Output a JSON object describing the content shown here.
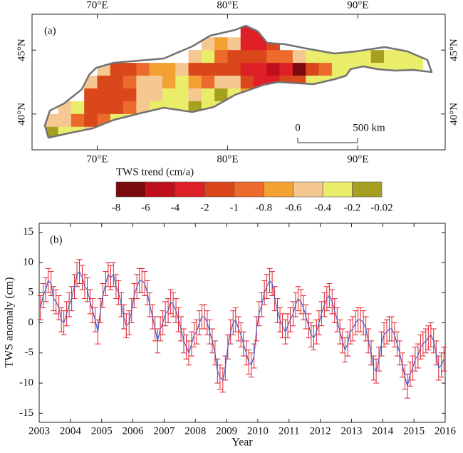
{
  "chart_data": [
    {
      "type": "heatmap",
      "panel_label": "(a)",
      "x": [
        66.5,
        67.5,
        68.5,
        69.5,
        70.5,
        71.5,
        72.5,
        73.5,
        74.5,
        75.5,
        76.5,
        77.5,
        78.5,
        79.5,
        80.5,
        81.5,
        82.5,
        83.5,
        84.5,
        85.5,
        86.5,
        87.5,
        88.5,
        89.5,
        90.5,
        91.5,
        92.5,
        93.5,
        94.5
      ],
      "y": [
        46.5,
        45.5,
        44.5,
        43.5,
        42.5,
        41.5,
        40.5,
        39.5,
        38.5
      ],
      "values": [
        [
          null,
          null,
          null,
          null,
          null,
          null,
          null,
          null,
          null,
          null,
          null,
          null,
          null,
          null,
          null,
          -3,
          -3,
          null,
          null,
          null,
          null,
          null,
          null,
          null,
          null,
          null,
          null,
          null,
          null
        ],
        [
          null,
          null,
          null,
          null,
          null,
          null,
          null,
          null,
          null,
          null,
          null,
          null,
          -0.5,
          -0.7,
          -0.5,
          -3,
          -3,
          -1.5,
          null,
          null,
          null,
          null,
          null,
          null,
          null,
          null,
          null,
          null,
          null
        ],
        [
          null,
          null,
          null,
          null,
          null,
          null,
          null,
          null,
          null,
          null,
          null,
          -0.5,
          -0.3,
          -0.9,
          -1.5,
          -1.5,
          -1.5,
          -0.9,
          -0.9,
          -0.5,
          -0.3,
          -0.3,
          -0.3,
          -0.3,
          -0.3,
          -0.1,
          -0.3,
          -0.3,
          -0.3
        ],
        [
          null,
          null,
          null,
          null,
          -0.5,
          -1.5,
          -1.5,
          -0.9,
          -0.7,
          -0.7,
          -0.5,
          -1.5,
          -1.5,
          -1.5,
          -1.5,
          -3,
          -3,
          -5,
          -3,
          -7,
          -1.5,
          -0.9,
          -0.3,
          -0.3,
          -0.3,
          -0.3,
          -0.3,
          -0.3,
          -0.3
        ],
        [
          null,
          null,
          null,
          -0.5,
          -1.5,
          -1.5,
          -0.9,
          -0.5,
          -0.5,
          -0.7,
          -0.3,
          -0.7,
          -0.9,
          -0.5,
          -0.5,
          -1.5,
          -3,
          -3,
          -1.5,
          -1.5,
          -0.3,
          -0.3,
          -0.3,
          null,
          null,
          null,
          null,
          null,
          null
        ],
        [
          null,
          null,
          null,
          -1.5,
          -1.5,
          -1.5,
          -1.5,
          -0.5,
          -0.5,
          -0.3,
          -0.3,
          -0.5,
          -0.3,
          -0.1,
          -0.3,
          -0.7,
          -0.3,
          -0.3,
          -0.3,
          -0.3,
          null,
          null,
          null,
          null,
          null,
          null,
          null,
          null,
          null
        ],
        [
          null,
          -0.5,
          -0.3,
          -1.5,
          -1.5,
          -1.5,
          -0.9,
          -0.5,
          -0.3,
          -0.3,
          -0.3,
          -0.1,
          -0.3,
          -0.3,
          -0.1,
          null,
          null,
          null,
          null,
          null,
          null,
          null,
          null,
          null,
          null,
          null,
          null,
          null,
          null
        ],
        [
          -0.5,
          -0.5,
          -0.9,
          -1.5,
          -0.9,
          -0.3,
          -0.3,
          null,
          null,
          null,
          null,
          null,
          null,
          null,
          null,
          null,
          null,
          null,
          null,
          null,
          null,
          null,
          null,
          null,
          null,
          null,
          null,
          null,
          null
        ],
        [
          -0.1,
          -0.3,
          -0.3,
          -0.5,
          null,
          null,
          null,
          null,
          null,
          null,
          null,
          null,
          null,
          null,
          null,
          null,
          null,
          null,
          null,
          null,
          null,
          null,
          null,
          null,
          null,
          null,
          null,
          null,
          null
        ]
      ],
      "xlim": [
        65,
        96.7
      ],
      "ylim": [
        37.2,
        47.8
      ],
      "xticks": [
        {
          "value": 70,
          "label": "70°E"
        },
        {
          "value": 80,
          "label": "80°E"
        },
        {
          "value": 90,
          "label": "90°E"
        }
      ],
      "yticks": [
        {
          "value": 40,
          "label": "40°N"
        },
        {
          "value": 45,
          "label": "45°N"
        }
      ],
      "colorbar": {
        "title": "TWS trend (cm/a)",
        "ticks": [
          -8,
          -6,
          -4,
          -2,
          -1,
          -0.8,
          -0.6,
          -0.4,
          -0.2,
          -0.02
        ],
        "colors": [
          "#7a0a0e",
          "#bf0f1b",
          "#df1f27",
          "#d9471b",
          "#ec6a2c",
          "#f3a132",
          "#f5c891",
          "#e9ed6a",
          "#a6a021"
        ]
      },
      "annotations": [
        "0",
        "500 km"
      ],
      "outline_color": "#727272"
    },
    {
      "type": "line",
      "panel_label": "(b)",
      "x_label": "Year",
      "y_label": "TWS anomaly (cm)",
      "x": [
        2003.04,
        2003.13,
        2003.21,
        2003.29,
        2003.38,
        2003.46,
        2003.54,
        2003.63,
        2003.71,
        2003.79,
        2003.88,
        2003.96,
        2004.04,
        2004.13,
        2004.21,
        2004.29,
        2004.38,
        2004.46,
        2004.54,
        2004.63,
        2004.71,
        2004.79,
        2004.88,
        2004.96,
        2005.04,
        2005.13,
        2005.21,
        2005.29,
        2005.38,
        2005.46,
        2005.54,
        2005.63,
        2005.71,
        2005.79,
        2005.88,
        2005.96,
        2006.04,
        2006.13,
        2006.21,
        2006.29,
        2006.38,
        2006.46,
        2006.54,
        2006.63,
        2006.71,
        2006.79,
        2006.88,
        2006.96,
        2007.04,
        2007.13,
        2007.21,
        2007.29,
        2007.38,
        2007.46,
        2007.54,
        2007.63,
        2007.71,
        2007.79,
        2007.88,
        2007.96,
        2008.04,
        2008.13,
        2008.21,
        2008.29,
        2008.38,
        2008.46,
        2008.54,
        2008.63,
        2008.71,
        2008.79,
        2008.88,
        2008.96,
        2009.04,
        2009.13,
        2009.21,
        2009.29,
        2009.38,
        2009.46,
        2009.54,
        2009.63,
        2009.71,
        2009.79,
        2009.88,
        2009.96,
        2010.04,
        2010.13,
        2010.21,
        2010.29,
        2010.38,
        2010.46,
        2010.54,
        2010.63,
        2010.71,
        2010.79,
        2010.88,
        2010.96,
        2011.04,
        2011.13,
        2011.21,
        2011.29,
        2011.38,
        2011.46,
        2011.54,
        2011.63,
        2011.71,
        2011.79,
        2011.88,
        2011.96,
        2012.04,
        2012.13,
        2012.21,
        2012.29,
        2012.38,
        2012.46,
        2012.54,
        2012.63,
        2012.71,
        2012.79,
        2012.88,
        2012.96,
        2013.04,
        2013.13,
        2013.21,
        2013.29,
        2013.38,
        2013.46,
        2013.54,
        2013.63,
        2013.71,
        2013.79,
        2013.88,
        2013.96,
        2014.04,
        2014.13,
        2014.21,
        2014.29,
        2014.38,
        2014.46,
        2014.54,
        2014.63,
        2014.71,
        2014.79,
        2014.88,
        2014.96,
        2015.04,
        2015.13,
        2015.21,
        2015.29,
        2015.38,
        2015.46,
        2015.54,
        2015.63,
        2015.71,
        2015.79,
        2015.88,
        2015.96
      ],
      "series": [
        {
          "color": "#4a5cc8",
          "error_color": "#e0202a",
          "error": 2,
          "values": [
            2.5,
            4.5,
            5.5,
            7.0,
            6.5,
            4.0,
            3.5,
            2.5,
            0.5,
            0.0,
            1.5,
            3.0,
            4.0,
            6.0,
            8.0,
            8.5,
            7.5,
            6.0,
            5.5,
            3.5,
            2.0,
            0.5,
            -1.5,
            2.0,
            4.5,
            6.5,
            8.0,
            7.5,
            8.0,
            6.0,
            5.0,
            3.0,
            1.0,
            -0.5,
            0.0,
            2.0,
            4.5,
            6.0,
            7.0,
            7.0,
            6.5,
            5.0,
            3.0,
            1.0,
            -1.0,
            -3.0,
            -1.0,
            0.0,
            1.5,
            2.0,
            3.5,
            3.0,
            2.0,
            0.5,
            -1.0,
            -3.0,
            -4.0,
            -5.0,
            -3.5,
            -2.0,
            -1.5,
            0.0,
            1.0,
            1.0,
            0.0,
            -1.5,
            -3.0,
            -5.0,
            -8.0,
            -9.0,
            -9.5,
            -7.5,
            -4.0,
            -1.5,
            0.0,
            0.5,
            -1.0,
            -2.0,
            -3.5,
            -5.0,
            -6.5,
            -7.0,
            -5.5,
            -1.0,
            1.5,
            3.0,
            5.0,
            6.0,
            7.0,
            6.5,
            4.0,
            2.0,
            0.5,
            -0.5,
            -1.5,
            -0.5,
            0.5,
            1.5,
            3.0,
            4.0,
            3.5,
            2.5,
            1.0,
            -0.5,
            -2.0,
            -2.5,
            -1.5,
            0.0,
            1.5,
            3.0,
            4.0,
            4.5,
            3.5,
            2.0,
            0.5,
            -1.5,
            -3.0,
            -4.5,
            -3.5,
            -1.5,
            -1.0,
            0.0,
            0.5,
            0.5,
            0.0,
            -1.0,
            -3.0,
            -5.0,
            -7.5,
            -8.0,
            -6.0,
            -3.5,
            -2.0,
            -1.5,
            -1.0,
            -1.0,
            -2.0,
            -3.5,
            -5.0,
            -7.0,
            -9.0,
            -10.5,
            -8.5,
            -7.5,
            -6.0,
            -5.5,
            -4.0,
            -3.5,
            -3.0,
            -2.5,
            -2.0,
            -3.0,
            -5.0,
            -7.5,
            -7.0,
            -6.0
          ]
        }
      ],
      "xlim": [
        2003,
        2016
      ],
      "ylim": [
        -16.5,
        16.5
      ],
      "xticks": [
        2003,
        2004,
        2005,
        2006,
        2007,
        2008,
        2009,
        2010,
        2011,
        2012,
        2013,
        2014,
        2015,
        2016
      ],
      "yticks": [
        15,
        10,
        5,
        0,
        -5,
        -10,
        -15
      ]
    }
  ]
}
